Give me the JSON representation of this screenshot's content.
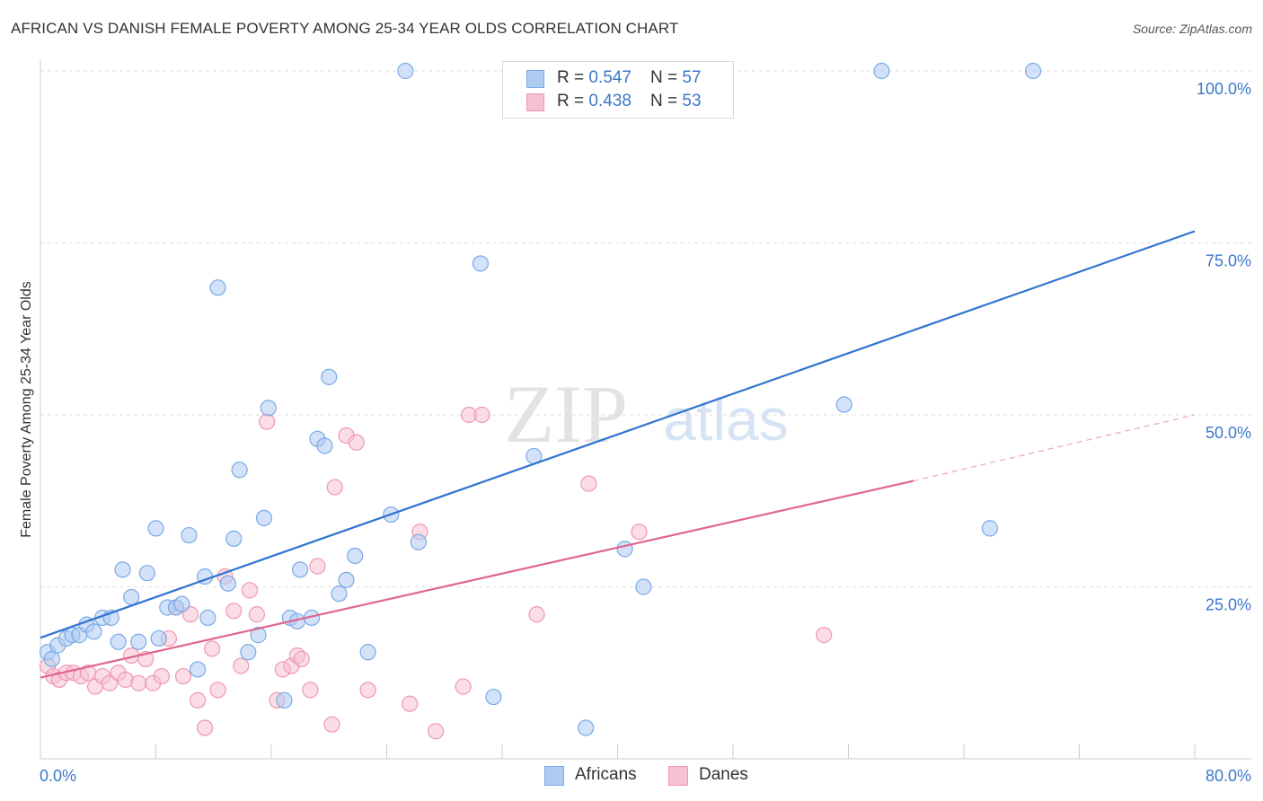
{
  "title": "AFRICAN VS DANISH FEMALE POVERTY AMONG 25-34 YEAR OLDS CORRELATION CHART",
  "source": "Source: ZipAtlas.com",
  "watermark": {
    "zip": "ZIP",
    "atlas": "atlas"
  },
  "legend": {
    "africans": {
      "r_label": "R = ",
      "r_value": "0.547",
      "n_label": "N = ",
      "n_value": "57"
    },
    "danes": {
      "r_label": "R = ",
      "r_value": "0.438",
      "n_label": "N = ",
      "n_value": "53"
    }
  },
  "colors": {
    "africans_fill": "#aecbf2",
    "africans_stroke": "#7aaae6",
    "africans_line": "#2f74d0",
    "danes_fill": "#f7c1d2",
    "danes_stroke": "#ee98b4",
    "danes_line": "#e0658f",
    "tick_label": "#3a78c9",
    "grid": "#dddddd"
  },
  "chart_data": {
    "type": "scatter",
    "title": "AFRICAN VS DANISH FEMALE POVERTY AMONG 25-34 YEAR OLDS CORRELATION CHART",
    "xlabel": "",
    "ylabel": "Female Poverty Among 25-34 Year Olds",
    "xlim": [
      0,
      80
    ],
    "ylim": [
      0,
      100
    ],
    "x_tick_labels": [
      "0.0%",
      "80.0%"
    ],
    "y_ticks": [
      25,
      50,
      75,
      100
    ],
    "y_tick_labels": [
      "25.0%",
      "50.0%",
      "75.0%",
      "100.0%"
    ],
    "grid": true,
    "legend_position": "bottom",
    "series": [
      {
        "name": "Africans",
        "points": [
          [
            0.5,
            15.5
          ],
          [
            0.8,
            14.5
          ],
          [
            1.2,
            16.5
          ],
          [
            1.8,
            17.5
          ],
          [
            2.2,
            18
          ],
          [
            2.7,
            18
          ],
          [
            3.2,
            19.5
          ],
          [
            3.7,
            18.5
          ],
          [
            4.3,
            20.5
          ],
          [
            4.9,
            20.5
          ],
          [
            5.4,
            17
          ],
          [
            5.7,
            27.5
          ],
          [
            6.3,
            23.5
          ],
          [
            6.8,
            17
          ],
          [
            7.4,
            27
          ],
          [
            8.0,
            33.5
          ],
          [
            8.2,
            17.5
          ],
          [
            8.8,
            22
          ],
          [
            9.4,
            22
          ],
          [
            9.8,
            22.5
          ],
          [
            10.3,
            32.5
          ],
          [
            10.9,
            13
          ],
          [
            11.4,
            26.5
          ],
          [
            11.6,
            20.5
          ],
          [
            12.3,
            68.5
          ],
          [
            13.0,
            25.5
          ],
          [
            13.4,
            32
          ],
          [
            13.8,
            42
          ],
          [
            14.4,
            15.5
          ],
          [
            15.1,
            18
          ],
          [
            15.5,
            35
          ],
          [
            15.8,
            51
          ],
          [
            16.9,
            8.5
          ],
          [
            17.3,
            20.5
          ],
          [
            17.8,
            20
          ],
          [
            18.0,
            27.5
          ],
          [
            18.8,
            20.5
          ],
          [
            19.2,
            46.5
          ],
          [
            19.7,
            45.5
          ],
          [
            20.0,
            55.5
          ],
          [
            20.7,
            24
          ],
          [
            21.2,
            26
          ],
          [
            21.8,
            29.5
          ],
          [
            22.7,
            15.5
          ],
          [
            24.3,
            35.5
          ],
          [
            25.3,
            100
          ],
          [
            26.2,
            31.5
          ],
          [
            30.5,
            72
          ],
          [
            31.4,
            9
          ],
          [
            34.2,
            44
          ],
          [
            37.8,
            4.5
          ],
          [
            40.5,
            30.5
          ],
          [
            41.8,
            25
          ],
          [
            55.7,
            51.5
          ],
          [
            58.3,
            100
          ],
          [
            65.8,
            33.5
          ],
          [
            68.8,
            100
          ]
        ]
      },
      {
        "name": "Danes",
        "points": [
          [
            0.5,
            13.5
          ],
          [
            0.9,
            12
          ],
          [
            1.3,
            11.5
          ],
          [
            1.8,
            12.5
          ],
          [
            2.3,
            12.5
          ],
          [
            2.8,
            12
          ],
          [
            3.3,
            12.5
          ],
          [
            3.8,
            10.5
          ],
          [
            4.3,
            12
          ],
          [
            4.8,
            11
          ],
          [
            5.4,
            12.5
          ],
          [
            5.9,
            11.5
          ],
          [
            6.3,
            15
          ],
          [
            6.8,
            11
          ],
          [
            7.3,
            14.5
          ],
          [
            7.8,
            11
          ],
          [
            8.4,
            12
          ],
          [
            8.9,
            17.5
          ],
          [
            9.4,
            22
          ],
          [
            9.9,
            12
          ],
          [
            10.4,
            21
          ],
          [
            10.9,
            8.5
          ],
          [
            11.4,
            4.5
          ],
          [
            11.9,
            16
          ],
          [
            12.3,
            10
          ],
          [
            12.8,
            26.5
          ],
          [
            13.4,
            21.5
          ],
          [
            13.9,
            13.5
          ],
          [
            14.5,
            24.5
          ],
          [
            15.0,
            21
          ],
          [
            15.7,
            49
          ],
          [
            16.4,
            8.5
          ],
          [
            16.8,
            13
          ],
          [
            17.4,
            13.5
          ],
          [
            17.8,
            15
          ],
          [
            18.1,
            14.5
          ],
          [
            18.7,
            10
          ],
          [
            19.2,
            28
          ],
          [
            20.2,
            5
          ],
          [
            20.4,
            39.5
          ],
          [
            21.2,
            47
          ],
          [
            21.9,
            46
          ],
          [
            22.7,
            10
          ],
          [
            25.6,
            8
          ],
          [
            26.3,
            33
          ],
          [
            27.4,
            4
          ],
          [
            29.3,
            10.5
          ],
          [
            29.7,
            50
          ],
          [
            30.6,
            50
          ],
          [
            34.4,
            21
          ],
          [
            38.0,
            40
          ],
          [
            41.5,
            33
          ],
          [
            54.3,
            18
          ]
        ]
      }
    ],
    "trend_lines": [
      {
        "name": "Africans",
        "x": [
          0,
          80
        ],
        "y": [
          17.6,
          76.7
        ]
      },
      {
        "name": "Danes",
        "x": [
          0,
          60.5
        ],
        "y": [
          11.8,
          40.4
        ]
      },
      {
        "name": "Danes",
        "style": "dashed",
        "x": [
          60.5,
          80
        ],
        "y": [
          40.4,
          50
        ]
      }
    ]
  }
}
